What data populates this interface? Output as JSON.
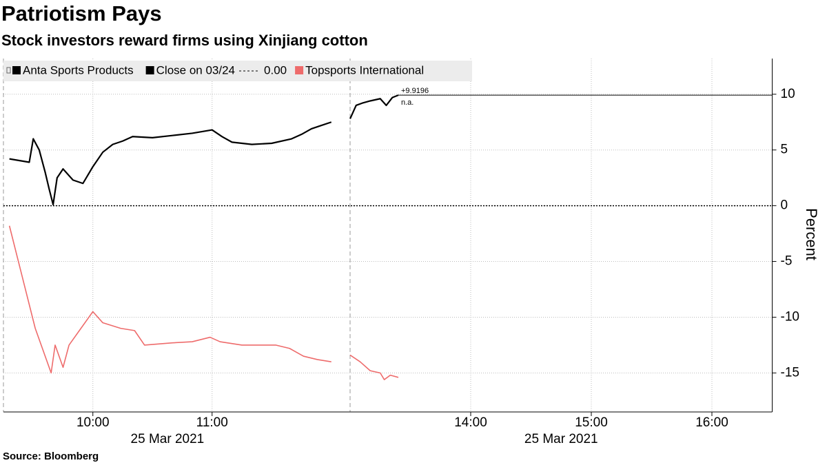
{
  "chart_data": {
    "type": "line",
    "title": "Patriotism Pays",
    "subtitle": "Stock investors reward firms using Xinjiang cotton",
    "source": "Source: Bloomberg",
    "ylabel": "Percent",
    "xlim": [
      "09:15",
      "16:30"
    ],
    "xticks": [
      "10:00",
      "11:00",
      "14:00",
      "15:00",
      "16:00"
    ],
    "x_date_labels": [
      "25 Mar 2021",
      "25 Mar 2021"
    ],
    "ylim": [
      -18.5,
      13.2
    ],
    "yticks": [
      -15,
      -10,
      -5,
      0,
      5,
      10
    ],
    "grid": true,
    "reference_line": {
      "name": "Close on 03/24",
      "value": 0,
      "value_label": "0.00"
    },
    "series": [
      {
        "name": "Anta Sports Products",
        "color": "#000000",
        "x": [
          "09:18",
          "09:28",
          "09:30",
          "09:33",
          "09:36",
          "09:38",
          "09:40",
          "09:42",
          "09:45",
          "09:50",
          "09:55",
          "10:00",
          "10:05",
          "10:10",
          "10:15",
          "10:20",
          "10:30",
          "10:40",
          "10:50",
          "11:00",
          "11:05",
          "11:10",
          "11:20",
          "11:30",
          "11:40",
          "11:45",
          "11:50",
          "11:55",
          "12:00",
          "13:00",
          "13:03",
          "13:06",
          "13:10",
          "13:15",
          "13:18",
          "13:21",
          "13:24"
        ],
        "values": [
          4.2,
          3.9,
          6.0,
          5.0,
          3.0,
          1.5,
          0.1,
          2.5,
          3.3,
          2.3,
          2.0,
          3.5,
          4.8,
          5.5,
          5.8,
          6.2,
          6.1,
          6.3,
          6.5,
          6.8,
          6.2,
          5.7,
          5.5,
          5.6,
          6.0,
          6.4,
          6.9,
          7.2,
          7.5,
          7.8,
          9.0,
          9.2,
          9.4,
          9.6,
          9.0,
          9.7,
          9.9196
        ],
        "last_value_label": "+9.9196"
      },
      {
        "name": "Topsports International",
        "color": "#ee6b6b",
        "x": [
          "09:18",
          "09:31",
          "09:39",
          "09:41",
          "09:45",
          "09:48",
          "09:54",
          "10:00",
          "10:05",
          "10:14",
          "10:21",
          "10:26",
          "10:40",
          "10:50",
          "10:59",
          "11:04",
          "11:15",
          "11:32",
          "11:39",
          "11:46",
          "11:53",
          "12:00",
          "13:00",
          "13:05",
          "13:10",
          "13:15",
          "13:17",
          "13:20",
          "13:24"
        ],
        "values": [
          -1.8,
          -11,
          -15,
          -12.5,
          -14.5,
          -12.5,
          -11,
          -9.5,
          -10.5,
          -11,
          -11.2,
          -12.5,
          -12.3,
          -12.2,
          -11.8,
          -12.2,
          -12.5,
          -12.5,
          -12.8,
          -13.5,
          -13.8,
          -14,
          -13.4,
          -14,
          -14.8,
          -15,
          -15.6,
          -15.2,
          -15.4
        ],
        "last_value_label": "n.a."
      }
    ]
  }
}
